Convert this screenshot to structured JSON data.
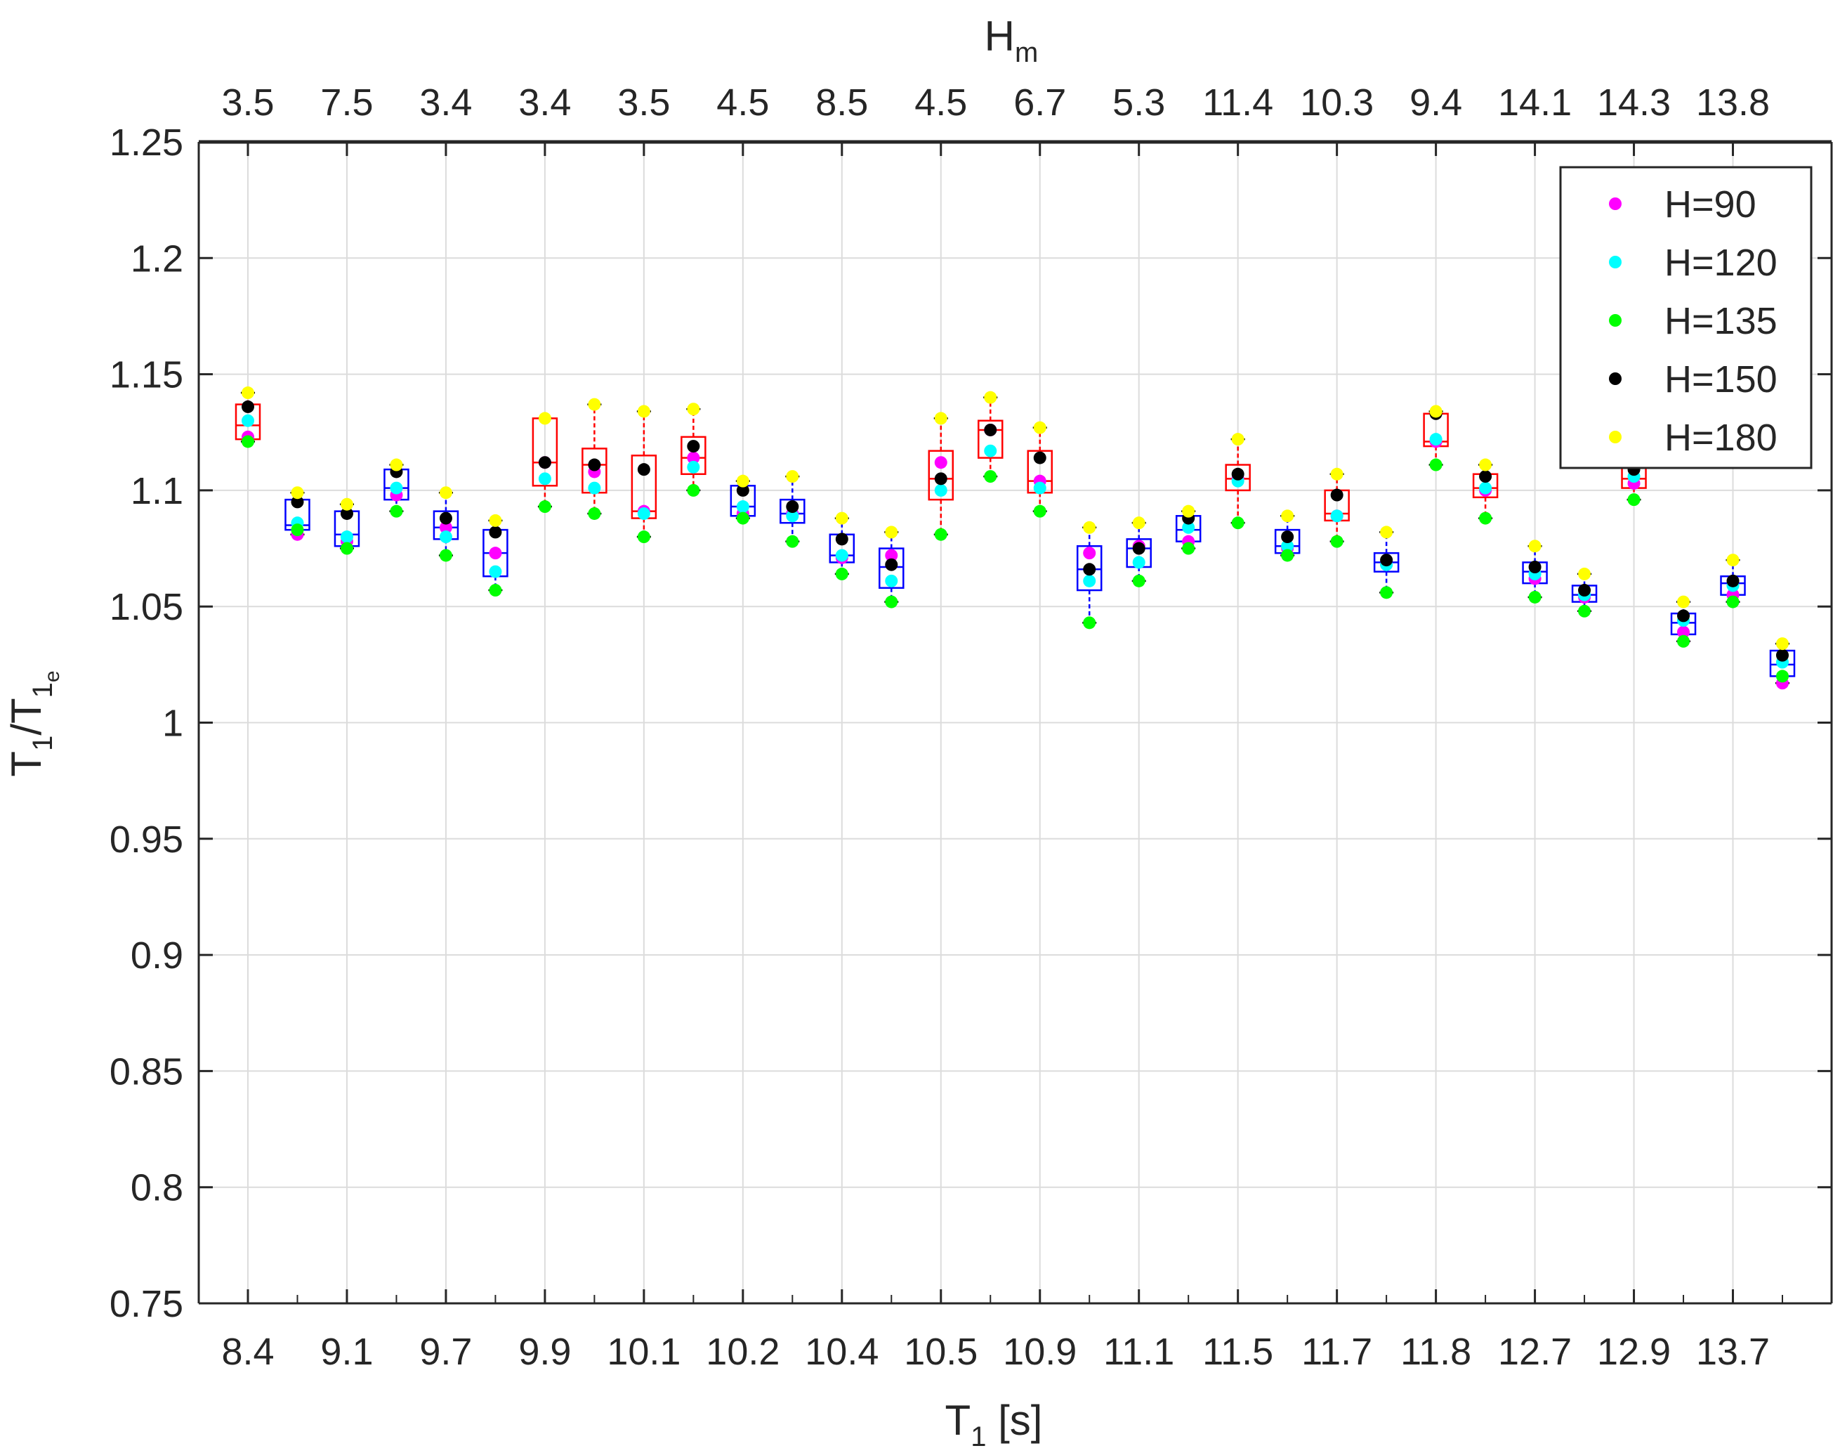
{
  "chart_data": {
    "type": "box",
    "xlabel": {
      "main": "T",
      "sub": "1",
      "suffix": " [s]"
    },
    "ylabel": {
      "main": "T",
      "sub1": "1",
      "mid": "/T",
      "sub2": "1",
      "sub3": "e"
    },
    "top_axis_label": {
      "main": "H",
      "sub": "m"
    },
    "ylim": [
      0.75,
      1.25
    ],
    "yticks": [
      "0.75",
      "0.8",
      "0.85",
      "0.9",
      "0.95",
      "1",
      "1.05",
      "1.1",
      "1.15",
      "1.2",
      "1.25"
    ],
    "xlabels_bottom": [
      "8.4",
      "9.1",
      "9.7",
      "9.9",
      "10.1",
      "10.2",
      "10.4",
      "10.5",
      "10.9",
      "11.1",
      "11.5",
      "11.7",
      "11.8",
      "12.7",
      "12.9",
      "13.7"
    ],
    "xlabels_top": [
      "3.5",
      "7.5",
      "3.4",
      "3.4",
      "3.5",
      "4.5",
      "8.5",
      "4.5",
      "6.7",
      "5.3",
      "11.4",
      "10.3",
      "9.4",
      "14.1",
      "14.3",
      "13.8"
    ],
    "grid": true,
    "legend_position": "top-right",
    "colors": {
      "red_box": "#ff0000",
      "blue_box": "#0000ff",
      "axis": "#262626",
      "grid": "#dcdcdc"
    },
    "series": [
      {
        "name": "H=90",
        "color": "#ff00ff"
      },
      {
        "name": "H=120",
        "color": "#00ffff"
      },
      {
        "name": "H=135",
        "color": "#00ff00"
      },
      {
        "name": "H=150",
        "color": "#000000"
      },
      {
        "name": "H=180",
        "color": "#ffff00"
      }
    ],
    "boxes": [
      {
        "box_color": "red",
        "q1": 1.122,
        "median": 1.128,
        "q3": 1.137,
        "whisker_low": 1.121,
        "whisker_high": 1.142,
        "values": [
          1.123,
          1.13,
          1.121,
          1.136,
          1.142
        ]
      },
      {
        "box_color": "blue",
        "q1": 1.083,
        "median": 1.085,
        "q3": 1.096,
        "whisker_low": 1.081,
        "whisker_high": 1.099,
        "values": [
          1.081,
          1.086,
          1.083,
          1.095,
          1.099
        ]
      },
      {
        "box_color": "blue",
        "q1": 1.076,
        "median": 1.081,
        "q3": 1.091,
        "whisker_low": 1.075,
        "whisker_high": 1.094,
        "values": [
          1.078,
          1.08,
          1.075,
          1.09,
          1.094
        ]
      },
      {
        "box_color": "blue",
        "q1": 1.096,
        "median": 1.101,
        "q3": 1.109,
        "whisker_low": 1.091,
        "whisker_high": 1.111,
        "values": [
          1.098,
          1.101,
          1.091,
          1.108,
          1.111
        ]
      },
      {
        "box_color": "blue",
        "q1": 1.079,
        "median": 1.084,
        "q3": 1.091,
        "whisker_low": 1.072,
        "whisker_high": 1.099,
        "values": [
          1.084,
          1.08,
          1.072,
          1.088,
          1.099
        ]
      },
      {
        "box_color": "blue",
        "q1": 1.063,
        "median": 1.073,
        "q3": 1.083,
        "whisker_low": 1.057,
        "whisker_high": 1.087,
        "values": [
          1.073,
          1.065,
          1.057,
          1.082,
          1.087
        ]
      },
      {
        "box_color": "red",
        "q1": 1.102,
        "median": 1.112,
        "q3": 1.131,
        "whisker_low": 1.093,
        "whisker_high": 1.131,
        "values": [
          1.112,
          1.105,
          1.093,
          1.112,
          1.131
        ]
      },
      {
        "box_color": "red",
        "q1": 1.099,
        "median": 1.111,
        "q3": 1.118,
        "whisker_low": 1.09,
        "whisker_high": 1.137,
        "values": [
          1.108,
          1.101,
          1.09,
          1.111,
          1.137
        ]
      },
      {
        "box_color": "red",
        "q1": 1.088,
        "median": 1.091,
        "q3": 1.115,
        "whisker_low": 1.08,
        "whisker_high": 1.134,
        "values": [
          1.091,
          1.09,
          1.08,
          1.109,
          1.134
        ]
      },
      {
        "box_color": "red",
        "q1": 1.107,
        "median": 1.114,
        "q3": 1.123,
        "whisker_low": 1.1,
        "whisker_high": 1.135,
        "values": [
          1.114,
          1.11,
          1.1,
          1.119,
          1.135
        ]
      },
      {
        "box_color": "blue",
        "q1": 1.089,
        "median": 1.093,
        "q3": 1.102,
        "whisker_low": 1.088,
        "whisker_high": 1.104,
        "values": [
          1.09,
          1.093,
          1.088,
          1.1,
          1.104
        ]
      },
      {
        "box_color": "blue",
        "q1": 1.086,
        "median": 1.09,
        "q3": 1.096,
        "whisker_low": 1.078,
        "whisker_high": 1.106,
        "values": [
          1.09,
          1.089,
          1.078,
          1.093,
          1.106
        ]
      },
      {
        "box_color": "blue",
        "q1": 1.069,
        "median": 1.072,
        "q3": 1.081,
        "whisker_low": 1.064,
        "whisker_high": 1.088,
        "values": [
          1.071,
          1.072,
          1.064,
          1.079,
          1.088
        ]
      },
      {
        "box_color": "blue",
        "q1": 1.058,
        "median": 1.067,
        "q3": 1.075,
        "whisker_low": 1.052,
        "whisker_high": 1.082,
        "values": [
          1.072,
          1.061,
          1.052,
          1.068,
          1.082
        ]
      },
      {
        "box_color": "red",
        "q1": 1.096,
        "median": 1.105,
        "q3": 1.117,
        "whisker_low": 1.081,
        "whisker_high": 1.131,
        "values": [
          1.112,
          1.1,
          1.081,
          1.105,
          1.131
        ]
      },
      {
        "box_color": "red",
        "q1": 1.114,
        "median": 1.126,
        "q3": 1.13,
        "whisker_low": 1.106,
        "whisker_high": 1.14,
        "values": [
          1.126,
          1.117,
          1.106,
          1.126,
          1.14
        ]
      },
      {
        "box_color": "red",
        "q1": 1.099,
        "median": 1.104,
        "q3": 1.117,
        "whisker_low": 1.091,
        "whisker_high": 1.127,
        "values": [
          1.104,
          1.101,
          1.091,
          1.114,
          1.127
        ]
      },
      {
        "box_color": "blue",
        "q1": 1.057,
        "median": 1.066,
        "q3": 1.076,
        "whisker_low": 1.043,
        "whisker_high": 1.084,
        "values": [
          1.073,
          1.061,
          1.043,
          1.066,
          1.084
        ]
      },
      {
        "box_color": "blue",
        "q1": 1.067,
        "median": 1.075,
        "q3": 1.079,
        "whisker_low": 1.061,
        "whisker_high": 1.086,
        "values": [
          1.076,
          1.069,
          1.061,
          1.075,
          1.086
        ]
      },
      {
        "box_color": "blue",
        "q1": 1.078,
        "median": 1.083,
        "q3": 1.089,
        "whisker_low": 1.075,
        "whisker_high": 1.091,
        "values": [
          1.078,
          1.084,
          1.075,
          1.088,
          1.091
        ]
      },
      {
        "box_color": "red",
        "q1": 1.1,
        "median": 1.105,
        "q3": 1.111,
        "whisker_low": 1.086,
        "whisker_high": 1.122,
        "values": [
          1.105,
          1.104,
          1.086,
          1.107,
          1.122
        ]
      },
      {
        "box_color": "blue",
        "q1": 1.073,
        "median": 1.076,
        "q3": 1.083,
        "whisker_low": 1.072,
        "whisker_high": 1.089,
        "values": [
          1.075,
          1.076,
          1.072,
          1.08,
          1.089
        ]
      },
      {
        "box_color": "red",
        "q1": 1.087,
        "median": 1.09,
        "q3": 1.1,
        "whisker_low": 1.078,
        "whisker_high": 1.107,
        "values": [
          1.089,
          1.089,
          1.078,
          1.098,
          1.107
        ]
      },
      {
        "box_color": "blue",
        "q1": 1.065,
        "median": 1.069,
        "q3": 1.073,
        "whisker_low": 1.056,
        "whisker_high": 1.082,
        "values": [
          1.068,
          1.068,
          1.056,
          1.07,
          1.082
        ]
      },
      {
        "box_color": "red",
        "q1": 1.119,
        "median": 1.121,
        "q3": 1.133,
        "whisker_low": 1.111,
        "whisker_high": 1.134,
        "values": [
          1.121,
          1.122,
          1.111,
          1.133,
          1.134
        ]
      },
      {
        "box_color": "red",
        "q1": 1.097,
        "median": 1.101,
        "q3": 1.107,
        "whisker_low": 1.088,
        "whisker_high": 1.111,
        "values": [
          1.1,
          1.101,
          1.088,
          1.106,
          1.111
        ]
      },
      {
        "box_color": "blue",
        "q1": 1.06,
        "median": 1.065,
        "q3": 1.069,
        "whisker_low": 1.054,
        "whisker_high": 1.076,
        "values": [
          1.062,
          1.064,
          1.054,
          1.067,
          1.076
        ]
      },
      {
        "box_color": "blue",
        "q1": 1.052,
        "median": 1.055,
        "q3": 1.059,
        "whisker_low": 1.048,
        "whisker_high": 1.064,
        "values": [
          1.054,
          1.055,
          1.048,
          1.057,
          1.064
        ]
      },
      {
        "box_color": "red",
        "q1": 1.101,
        "median": 1.105,
        "q3": 1.111,
        "whisker_low": 1.096,
        "whisker_high": 1.113,
        "values": [
          1.103,
          1.106,
          1.096,
          1.109,
          1.113
        ]
      },
      {
        "box_color": "blue",
        "q1": 1.038,
        "median": 1.043,
        "q3": 1.047,
        "whisker_low": 1.035,
        "whisker_high": 1.052,
        "values": [
          1.039,
          1.044,
          1.035,
          1.046,
          1.052
        ]
      },
      {
        "box_color": "blue",
        "q1": 1.055,
        "median": 1.06,
        "q3": 1.063,
        "whisker_low": 1.052,
        "whisker_high": 1.07,
        "values": [
          1.055,
          1.059,
          1.052,
          1.061,
          1.07
        ]
      },
      {
        "box_color": "blue",
        "q1": 1.02,
        "median": 1.025,
        "q3": 1.031,
        "whisker_low": 1.017,
        "whisker_high": 1.034,
        "values": [
          1.017,
          1.026,
          1.02,
          1.029,
          1.034
        ]
      }
    ]
  }
}
